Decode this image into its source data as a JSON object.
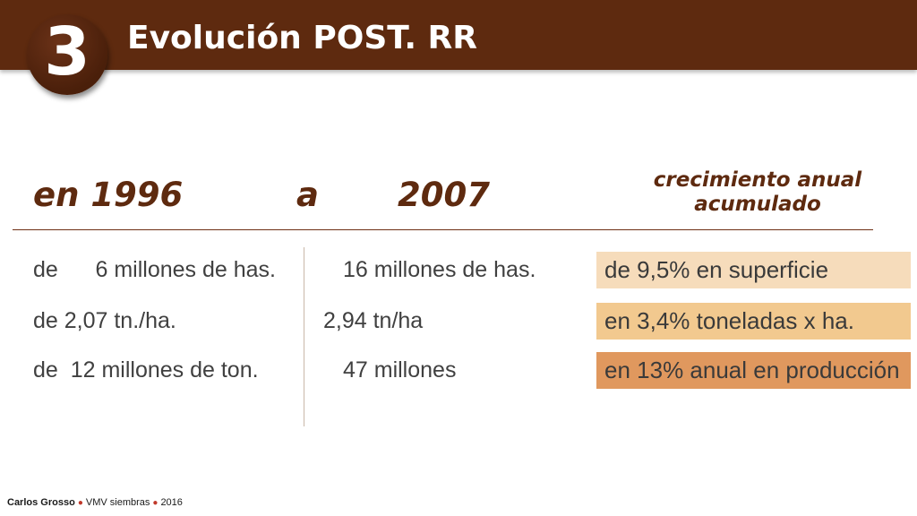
{
  "header": {
    "number": "3",
    "title": "Evolución POST. RR"
  },
  "years": {
    "from_label": "en 1996",
    "connector": "a",
    "to_label": "2007"
  },
  "growth_header": {
    "line1": "crecimiento anual",
    "line2": "acumulado"
  },
  "rows": [
    {
      "from": "de      6 millones de has.",
      "to": "16 millones de has.",
      "growth": "de 9,5% en superficie",
      "growth_color": "#f6dcbb"
    },
    {
      "from": "de 2,07 tn./ha.",
      "to": "2,94 tn/ha",
      "growth": "en 3,4% toneladas x ha.",
      "growth_color": "#f2c98f"
    },
    {
      "from": "de  12 millones de ton.",
      "to": "47 millones",
      "growth": "en 13% anual en producción",
      "growth_color": "#e0985e"
    }
  ],
  "footer": {
    "author": "Carlos Grosso",
    "org": "VMV siembras",
    "year": "2016"
  },
  "colors": {
    "brand_brown": "#5e2a0f",
    "body_text": "#404040"
  }
}
